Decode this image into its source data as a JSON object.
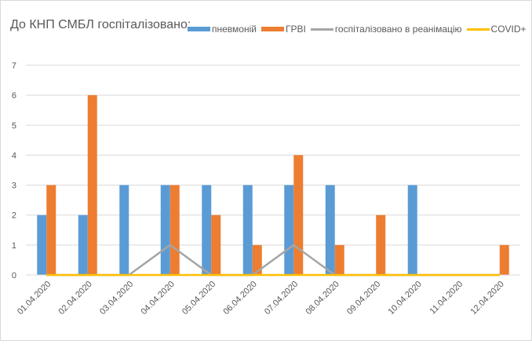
{
  "chart_data": {
    "type": "bar",
    "title": "До КНП СМБЛ госпіталізовано:",
    "xlabel": "",
    "ylabel": "",
    "ylim": [
      0,
      7
    ],
    "yticks": [
      0,
      1,
      2,
      3,
      4,
      5,
      6,
      7
    ],
    "grid": true,
    "legend_position": "top",
    "categories": [
      "01.04.2020",
      "02.04.2020",
      "03.04.2020",
      "04.04.2020",
      "05.04.2020",
      "06.04.2020",
      "07.04.2020",
      "08.04.2020",
      "09.04.2020",
      "10.04.2020",
      "11.04.2020",
      "12.04.2020"
    ],
    "series": [
      {
        "name": "пневмоній",
        "type": "bar",
        "color": "#5b9bd5",
        "values": [
          2,
          2,
          3,
          3,
          3,
          3,
          3,
          3,
          0,
          3,
          0,
          0
        ]
      },
      {
        "name": "ГРВІ",
        "type": "bar",
        "color": "#ed7d31",
        "values": [
          3,
          6,
          0,
          3,
          2,
          1,
          4,
          1,
          2,
          0,
          0,
          1
        ]
      },
      {
        "name": "госпіталізовано в реанімацію",
        "type": "line",
        "color": "#a5a5a5",
        "values": [
          0,
          0,
          0,
          1,
          0,
          0,
          1,
          0,
          0,
          0,
          0,
          0
        ]
      },
      {
        "name": "COVID+",
        "type": "line",
        "color": "#ffc000",
        "values": [
          0,
          0,
          0,
          0,
          0,
          0,
          0,
          0,
          0,
          0,
          0,
          0
        ]
      }
    ]
  }
}
